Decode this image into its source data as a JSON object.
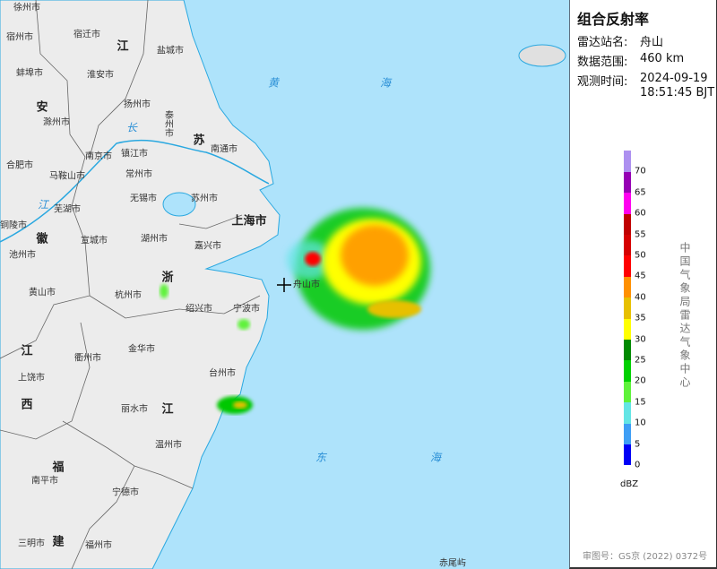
{
  "panel": {
    "title": "组合反射率",
    "station_label": "雷达站名:",
    "station": "舟山",
    "range_label": "数据范围:",
    "range": "460 km",
    "time_label": "观测时间:",
    "date": "2024-09-19",
    "time": "18:51:45 BJT",
    "unit": "dBZ",
    "org": "中国气象局雷达气象中心",
    "approval": "审图号：GS京 (2022) 0372号"
  },
  "colorbar": {
    "ticks": [
      "0",
      "5",
      "10",
      "15",
      "20",
      "25",
      "30",
      "35",
      "40",
      "45",
      "50",
      "55",
      "60",
      "65",
      "70"
    ],
    "colors": [
      "#0000F6",
      "#3E9EF5",
      "#63E5E5",
      "#5EF23A",
      "#00D100",
      "#008A00",
      "#FFFF00",
      "#E7C000",
      "#FF9000",
      "#FF0000",
      "#D60000",
      "#C00000",
      "#FF00F0",
      "#9600B4",
      "#AD90F0"
    ]
  },
  "map": {
    "colors": {
      "sea": "#aee3fb",
      "land": "#ececec",
      "coast": "#2aa8e0"
    },
    "radar_marker": "crosshair-icon",
    "labels": {
      "cities": [
        "徐州市",
        "宿州市",
        "宿迁市",
        "盐城市",
        "蚌埠市",
        "淮安市",
        "扬州市",
        "泰州市",
        "滁州市",
        "南通市",
        "南京市",
        "镇江市",
        "合肥市",
        "马鞍山市",
        "常州市",
        "无锡市",
        "苏州市",
        "芜湖市",
        "铜陵市",
        "湖州市",
        "宣城市",
        "嘉兴市",
        "池州市",
        "黄山市",
        "杭州市",
        "绍兴市",
        "宁波市",
        "金华市",
        "衢州市",
        "上饶市",
        "台州市",
        "丽水市",
        "温州市",
        "南平市",
        "宁德市",
        "三明市",
        "福州市",
        "舟山市"
      ],
      "shanghai": "上海市",
      "provinces": [
        "江",
        "苏",
        "安",
        "徽",
        "浙",
        "江",
        "江",
        "西",
        "福",
        "建"
      ],
      "seas": [
        "黄",
        "海",
        "东",
        "海",
        "长",
        "江"
      ],
      "island": "赤尾屿"
    }
  }
}
